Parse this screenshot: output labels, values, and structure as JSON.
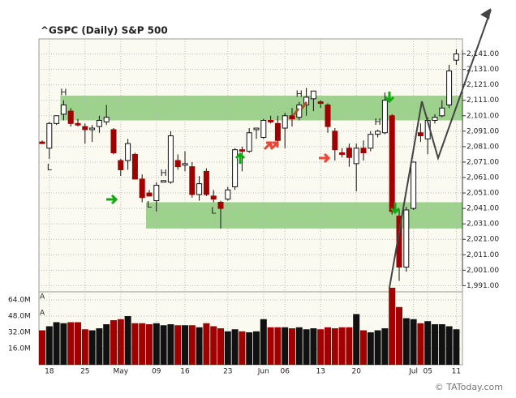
{
  "chart_data": {
    "type": "candlestick",
    "title": "^GSPC (Daily)  S&P 500",
    "footer": "© TAToday.com",
    "categories": [
      null,
      "18",
      null,
      null,
      null,
      null,
      "25",
      null,
      null,
      null,
      null,
      "May",
      null,
      null,
      null,
      null,
      "09",
      null,
      null,
      null,
      "16",
      null,
      null,
      null,
      null,
      null,
      "23",
      null,
      null,
      null,
      null,
      "Jun",
      null,
      null,
      "06",
      null,
      null,
      null,
      null,
      "13",
      null,
      null,
      null,
      null,
      "20",
      null,
      null,
      null,
      null,
      null,
      null,
      null,
      "Jul",
      null,
      "05",
      null,
      null,
      null,
      "11"
    ],
    "open": [
      2084,
      2080,
      2096,
      2102,
      2104,
      2096,
      2094,
      2092,
      2094,
      2097,
      2092,
      2072,
      2072,
      2076,
      2060,
      2051,
      2046,
      2058,
      2058,
      2072,
      2069,
      2068,
      2050,
      2065,
      2049,
      2045,
      2047,
      2055,
      2079,
      2078,
      2092,
      2087,
      2098,
      2096,
      2093,
      2101,
      2100,
      2108,
      2112,
      2110,
      2108,
      2091,
      2077,
      2080,
      2070,
      2080,
      2080,
      2089,
      2090,
      2101,
      2036,
      2003,
      2041,
      2090,
      2086,
      2098,
      2101,
      2108,
      2137
    ],
    "high": [
      2085,
      2097,
      2101,
      2111,
      2106,
      2099,
      2096,
      2095,
      2101,
      2108,
      2093,
      2073,
      2086,
      2077,
      2063,
      2053,
      2058,
      2059,
      2091,
      2076,
      2078,
      2071,
      2062,
      2067,
      2053,
      2046,
      2055,
      2080,
      2081,
      2093,
      2093,
      2099,
      2101,
      2101,
      2103,
      2106,
      2110,
      2119,
      2117,
      2111,
      2109,
      2093,
      2080,
      2083,
      2083,
      2085,
      2091,
      2092,
      2116,
      2102,
      2040,
      2042,
      2071,
      2096,
      2100,
      2102,
      2111,
      2134,
      2144
    ],
    "low": [
      2083,
      2073,
      2095,
      2098,
      2094,
      2094,
      2083,
      2084,
      2090,
      2095,
      2076,
      2062,
      2066,
      2060,
      2045,
      2049,
      2039,
      2058,
      2057,
      2066,
      2065,
      2048,
      2046,
      2049,
      2045,
      2028,
      2046,
      2053,
      2065,
      2077,
      2086,
      2086,
      2096,
      2082,
      2080,
      2094,
      2098,
      2101,
      2104,
      2106,
      2090,
      2072,
      2074,
      2068,
      2052,
      2072,
      2078,
      2087,
      2089,
      2037,
      1994,
      2000,
      2040,
      2084,
      2076,
      2096,
      2100,
      2106,
      2134
    ],
    "close": [
      2083,
      2096,
      2101,
      2108,
      2096,
      2095,
      2092,
      2093,
      2098,
      2100,
      2077,
      2066,
      2083,
      2060,
      2048,
      2049,
      2056,
      2059,
      2088,
      2068,
      2070,
      2050,
      2057,
      2050,
      2047,
      2041,
      2053,
      2079,
      2078,
      2090,
      2093,
      2098,
      2097,
      2085,
      2101,
      2099,
      2108,
      2113,
      2117,
      2109,
      2094,
      2079,
      2076,
      2074,
      2080,
      2077,
      2089,
      2091,
      2111,
      2039,
      2003,
      2040,
      2071,
      2088,
      2098,
      2100,
      2106,
      2130,
      2141
    ],
    "up_color": "#ffffff",
    "down_color": "#a00000",
    "ylim": [
      1987,
      2156
    ],
    "yticks": [
      {
        "value": 2141,
        "label": "2,141.00"
      },
      {
        "value": 2131,
        "label": "2,131.00"
      },
      {
        "value": 2121,
        "label": "2,121.00"
      },
      {
        "value": 2111,
        "label": "2,111.00"
      },
      {
        "value": 2101,
        "label": "2,101.00"
      },
      {
        "value": 2091,
        "label": "2,091.00"
      },
      {
        "value": 2081,
        "label": "2,081.00"
      },
      {
        "value": 2071,
        "label": "2,071.00"
      },
      {
        "value": 2061,
        "label": "2,061.00"
      },
      {
        "value": 2051,
        "label": "2,051.00"
      },
      {
        "value": 2041,
        "label": "2,041.00"
      },
      {
        "value": 2031,
        "label": "2,031.00"
      },
      {
        "value": 2021,
        "label": "2,021.00"
      },
      {
        "value": 2011,
        "label": "2,011.00"
      },
      {
        "value": 2001,
        "label": "2,001.00"
      },
      {
        "value": 1991,
        "label": "1,991.00"
      }
    ],
    "bands": [
      {
        "from": 2098,
        "to": 2114,
        "start": 3,
        "color": "#7cc46a"
      },
      {
        "from": 2028,
        "to": 2045,
        "start": 15,
        "color": "#7cc46a"
      }
    ],
    "markers": [
      {
        "text": "H",
        "index": 3,
        "at": "high"
      },
      {
        "text": "H",
        "index": 17,
        "at": "high"
      },
      {
        "text": "H",
        "index": 36,
        "at": "high"
      },
      {
        "text": "H",
        "index": 47,
        "at": "high"
      },
      {
        "text": "L",
        "index": 1,
        "at": "low"
      },
      {
        "text": "L",
        "index": 15,
        "at": "low"
      },
      {
        "text": "L",
        "index": 24,
        "at": "low"
      }
    ],
    "volume": {
      "values": [
        34,
        38,
        42,
        41,
        42,
        42,
        35,
        34,
        36,
        40,
        44,
        45,
        48,
        41,
        41,
        40,
        41,
        39,
        40,
        39,
        39,
        39,
        37,
        41,
        38,
        36,
        33,
        35,
        33,
        32,
        33,
        45,
        37,
        37,
        37,
        36,
        37,
        35,
        36,
        35,
        37,
        36,
        37,
        37,
        50,
        34,
        32,
        34,
        36,
        76,
        57,
        46,
        45,
        41,
        43,
        40,
        40,
        38,
        35
      ],
      "ylim": [
        0,
        80
      ],
      "yticks": [
        {
          "value": 64,
          "label": "64.0M"
        },
        {
          "value": 48,
          "label": "48.0M"
        },
        {
          "value": 32,
          "label": "32.0M"
        },
        {
          "value": 16,
          "label": "16.0M"
        }
      ],
      "flags": [
        {
          "text": "A",
          "value": 64
        },
        {
          "text": "A",
          "value": 48
        }
      ]
    }
  }
}
